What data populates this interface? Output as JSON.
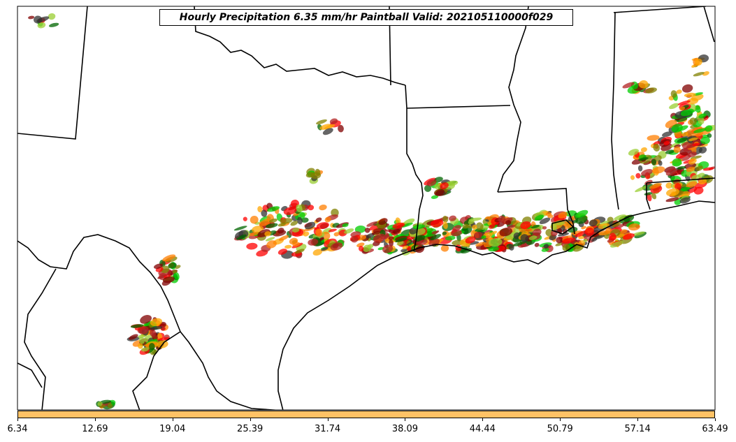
{
  "title": "Hourly Precipitation 6.35 mm/hr Paintball Valid: 202105110000f029",
  "colorbar": {
    "color": "#ffc266",
    "ticks": [
      "6.34",
      "12.69",
      "19.04",
      "25.39",
      "31.74",
      "38.09",
      "44.44",
      "50.79",
      "57.14",
      "63.49"
    ]
  },
  "member_colors": [
    "#ff0000",
    "#ff7f00",
    "#00cc00",
    "#800000",
    "#808000",
    "#006600",
    "#ffa500",
    "#b22222",
    "#333333",
    "#9acd32"
  ],
  "map": {
    "region": "South-central United States / Gulf Coast",
    "land_color": "#ffffff",
    "boundary_color": "#000000"
  }
}
